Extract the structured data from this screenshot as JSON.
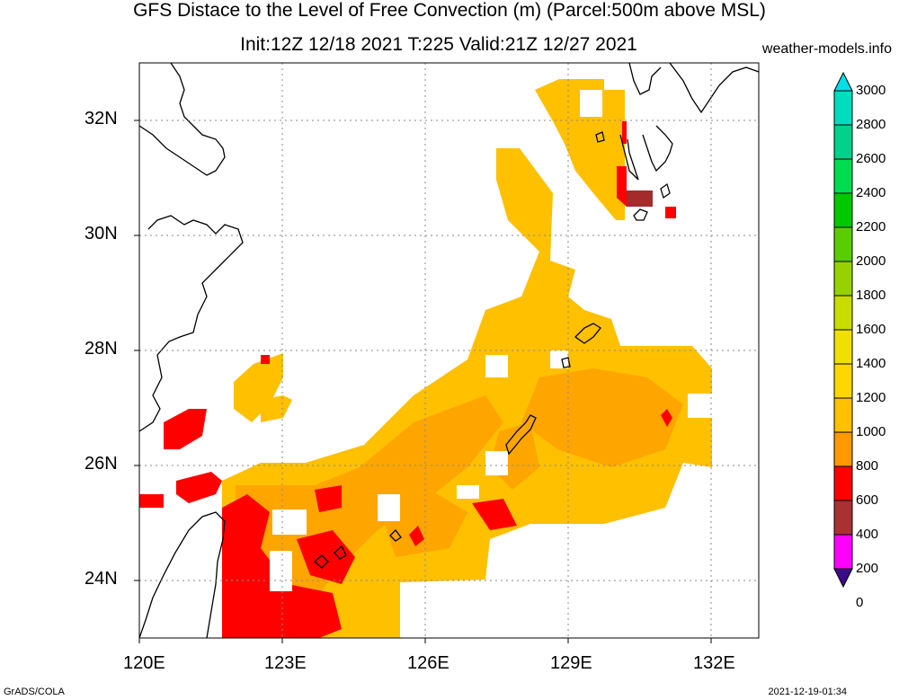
{
  "title": {
    "line1": "GFS Distace to the Level of Free Convection (m) (Parcel:500m above MSL)",
    "line2": "Init:12Z 12/18 2021 T:225 Valid:21Z 12/27 2021",
    "site": "weather-models.info"
  },
  "axes": {
    "lat_labels": [
      "32N",
      "30N",
      "28N",
      "26N",
      "24N"
    ],
    "lon_labels": [
      "120E",
      "123E",
      "126E",
      "129E",
      "132E"
    ],
    "lat_values": [
      32,
      30,
      28,
      26,
      24
    ],
    "lon_values": [
      120,
      123,
      126,
      129,
      132
    ],
    "lat_range": [
      23,
      33
    ],
    "lon_range": [
      120,
      133
    ],
    "grid": "dotted"
  },
  "colorbar": {
    "levels": [
      "0",
      "200",
      "400",
      "600",
      "800",
      "1000",
      "1200",
      "1400",
      "1600",
      "1800",
      "2000",
      "2200",
      "2400",
      "2600",
      "2800",
      "3000"
    ],
    "colors": [
      "#3c0a8c",
      "#ff00ff",
      "#a83232",
      "#ff0000",
      "#ff9900",
      "#ffc000",
      "#ffd700",
      "#f0e000",
      "#c8dc00",
      "#96d200",
      "#5acd00",
      "#00c800",
      "#00dc50",
      "#00d28c",
      "#00dcbe",
      "#00e0e6"
    ]
  },
  "field_colors": {
    "light": "#ffc000",
    "medium": "#ffa500",
    "dark": "#ff0000",
    "brown": "#a52a2a",
    "coast": "#000000"
  },
  "footer": {
    "left": "GrADS/COLA",
    "right": "2021-12-19-01:34"
  }
}
